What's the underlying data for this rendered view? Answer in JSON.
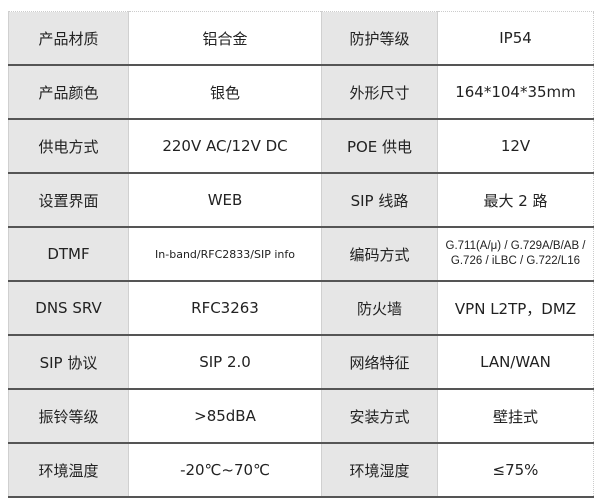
{
  "rows": [
    {
      "label1": "产品材质",
      "value1": "铝合金",
      "label2": "防护等级",
      "value2": "IP54"
    },
    {
      "label1": "产品颜色",
      "value1": "银色",
      "label2": "外形尺寸",
      "value2": "164*104*35mm"
    },
    {
      "label1": "供电方式",
      "value1": "220V AC/12V DC",
      "label2": "POE 供电",
      "value2": "12V"
    },
    {
      "label1": "设置界面",
      "value1": "WEB",
      "label2": "SIP 线路",
      "value2": "最大 2 路"
    },
    {
      "label1": "DTMF",
      "value1": "In-band/RFC2833/SIP info",
      "label2": "编码方式",
      "value2": "G.711(A/μ) / G.729A/B/AB / G.726 / iLBC / G.722/L16"
    },
    {
      "label1": "DNS SRV",
      "value1": "RFC3263",
      "label2": "防火墙",
      "value2": "VPN L2TP，DMZ"
    },
    {
      "label1": "SIP 协议",
      "value1": "SIP 2.0",
      "label2": "网络特征",
      "value2": "LAN/WAN"
    },
    {
      "label1": "振铃等级",
      "value1": ">85dBA",
      "label2": "安装方式",
      "value2": "壁挂式"
    },
    {
      "label1": "环境温度",
      "value1": "-20℃~70℃",
      "label2": "环境湿度",
      "value2": "≤75%"
    }
  ],
  "colors": {
    "label_bg": "#e6e6e6",
    "value_bg": "#ffffff",
    "row_divider": "#555555"
  }
}
